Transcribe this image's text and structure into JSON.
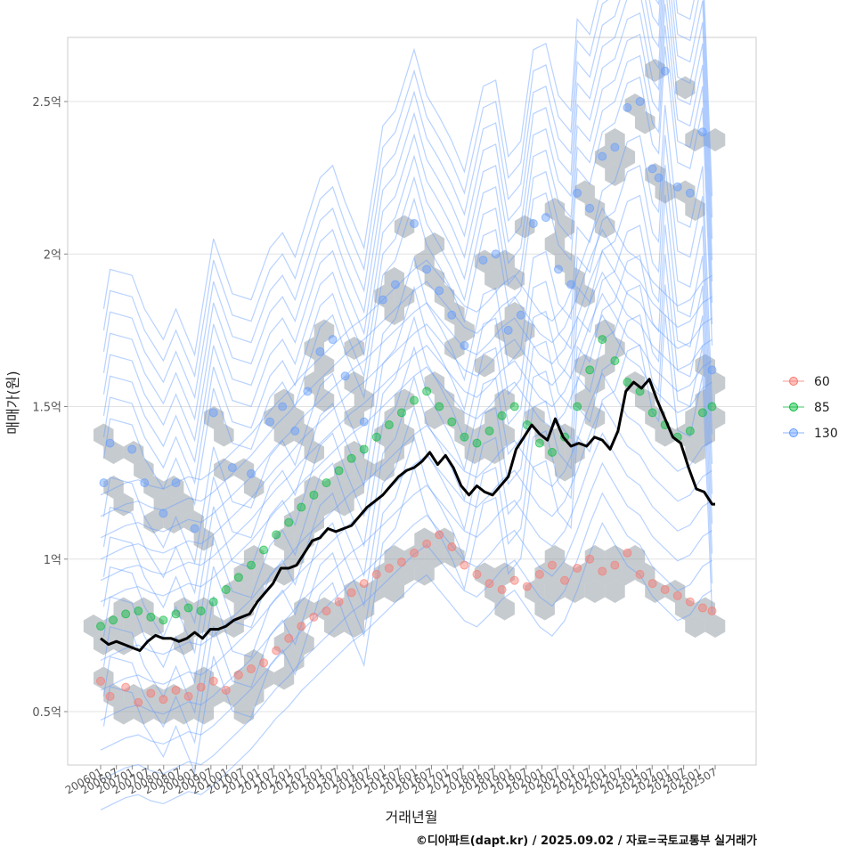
{
  "chart_data": {
    "type": "scatter",
    "xlabel": "거래년월",
    "ylabel": "매매가(원)",
    "ylim": [
      0.33,
      2.7
    ],
    "y_ticks": [
      {
        "value": 0.5,
        "label": "0.5억"
      },
      {
        "value": 1.0,
        "label": "1억"
      },
      {
        "value": 1.5,
        "label": "1.5억"
      },
      {
        "value": 2.0,
        "label": "2억"
      },
      {
        "value": 2.5,
        "label": "2.5억"
      }
    ],
    "x_tick_labels": [
      "200601",
      "200607",
      "200701",
      "200707",
      "200801",
      "200807",
      "200901",
      "200907",
      "201001",
      "201007",
      "201101",
      "201107",
      "201201",
      "201207",
      "201301",
      "201307",
      "201401",
      "201407",
      "201501",
      "201507",
      "201601",
      "201607",
      "201701",
      "201707",
      "201801",
      "201807",
      "201901",
      "201907",
      "202001",
      "202007",
      "202101",
      "202107",
      "202201",
      "202207",
      "202301",
      "202307",
      "202401",
      "202407",
      "202501",
      "202507"
    ],
    "legend": {
      "title": "",
      "position": "right",
      "entries": [
        {
          "label": "60",
          "color": "#F8766D"
        },
        {
          "label": "85",
          "color": "#00BA38"
        },
        {
          "label": "130",
          "color": "#619CFF"
        }
      ]
    },
    "series": [
      {
        "name": "60",
        "color": "#F8766D",
        "points": [
          [
            2006.0,
            0.6
          ],
          [
            2006.3,
            0.55
          ],
          [
            2006.8,
            0.58
          ],
          [
            2007.2,
            0.53
          ],
          [
            2007.6,
            0.56
          ],
          [
            2008.0,
            0.54
          ],
          [
            2008.4,
            0.57
          ],
          [
            2008.8,
            0.55
          ],
          [
            2009.2,
            0.58
          ],
          [
            2009.6,
            0.6
          ],
          [
            2010.0,
            0.57
          ],
          [
            2010.4,
            0.62
          ],
          [
            2010.8,
            0.64
          ],
          [
            2011.2,
            0.66
          ],
          [
            2011.6,
            0.7
          ],
          [
            2012.0,
            0.74
          ],
          [
            2012.4,
            0.78
          ],
          [
            2012.8,
            0.81
          ],
          [
            2013.2,
            0.83
          ],
          [
            2013.6,
            0.86
          ],
          [
            2014.0,
            0.89
          ],
          [
            2014.4,
            0.92
          ],
          [
            2014.8,
            0.95
          ],
          [
            2015.2,
            0.97
          ],
          [
            2015.6,
            0.99
          ],
          [
            2016.0,
            1.02
          ],
          [
            2016.4,
            1.05
          ],
          [
            2016.8,
            1.08
          ],
          [
            2017.2,
            1.04
          ],
          [
            2017.6,
            0.98
          ],
          [
            2018.0,
            0.95
          ],
          [
            2018.4,
            0.92
          ],
          [
            2018.8,
            0.9
          ],
          [
            2019.2,
            0.93
          ],
          [
            2019.6,
            0.91
          ],
          [
            2020.0,
            0.95
          ],
          [
            2020.4,
            0.98
          ],
          [
            2020.8,
            0.93
          ],
          [
            2021.2,
            0.97
          ],
          [
            2021.6,
            1.0
          ],
          [
            2022.0,
            0.96
          ],
          [
            2022.4,
            0.98
          ],
          [
            2022.8,
            1.02
          ],
          [
            2023.2,
            0.95
          ],
          [
            2023.6,
            0.92
          ],
          [
            2024.0,
            0.9
          ],
          [
            2024.4,
            0.88
          ],
          [
            2024.8,
            0.86
          ],
          [
            2025.2,
            0.84
          ],
          [
            2025.5,
            0.83
          ]
        ]
      },
      {
        "name": "85",
        "color": "#00BA38",
        "points": [
          [
            2006.0,
            0.78
          ],
          [
            2006.4,
            0.8
          ],
          [
            2006.8,
            0.82
          ],
          [
            2007.2,
            0.83
          ],
          [
            2007.6,
            0.81
          ],
          [
            2008.0,
            0.8
          ],
          [
            2008.4,
            0.82
          ],
          [
            2008.8,
            0.84
          ],
          [
            2009.2,
            0.83
          ],
          [
            2009.6,
            0.86
          ],
          [
            2010.0,
            0.9
          ],
          [
            2010.4,
            0.94
          ],
          [
            2010.8,
            0.98
          ],
          [
            2011.2,
            1.03
          ],
          [
            2011.6,
            1.08
          ],
          [
            2012.0,
            1.12
          ],
          [
            2012.4,
            1.17
          ],
          [
            2012.8,
            1.21
          ],
          [
            2013.2,
            1.25
          ],
          [
            2013.6,
            1.29
          ],
          [
            2014.0,
            1.33
          ],
          [
            2014.4,
            1.36
          ],
          [
            2014.8,
            1.4
          ],
          [
            2015.2,
            1.44
          ],
          [
            2015.6,
            1.48
          ],
          [
            2016.0,
            1.52
          ],
          [
            2016.4,
            1.55
          ],
          [
            2016.8,
            1.5
          ],
          [
            2017.2,
            1.45
          ],
          [
            2017.6,
            1.4
          ],
          [
            2018.0,
            1.38
          ],
          [
            2018.4,
            1.42
          ],
          [
            2018.8,
            1.47
          ],
          [
            2019.2,
            1.5
          ],
          [
            2019.6,
            1.44
          ],
          [
            2020.0,
            1.38
          ],
          [
            2020.4,
            1.35
          ],
          [
            2020.8,
            1.4
          ],
          [
            2021.2,
            1.5
          ],
          [
            2021.6,
            1.62
          ],
          [
            2022.0,
            1.72
          ],
          [
            2022.4,
            1.65
          ],
          [
            2022.8,
            1.58
          ],
          [
            2023.2,
            1.55
          ],
          [
            2023.6,
            1.48
          ],
          [
            2024.0,
            1.44
          ],
          [
            2024.4,
            1.4
          ],
          [
            2024.8,
            1.42
          ],
          [
            2025.2,
            1.48
          ],
          [
            2025.5,
            1.5
          ]
        ]
      },
      {
        "name": "130",
        "color": "#619CFF",
        "points": [
          [
            2006.1,
            1.25
          ],
          [
            2006.3,
            1.38
          ],
          [
            2007.0,
            1.36
          ],
          [
            2007.4,
            1.25
          ],
          [
            2008.0,
            1.15
          ],
          [
            2008.4,
            1.25
          ],
          [
            2009.0,
            1.1
          ],
          [
            2009.6,
            1.48
          ],
          [
            2010.2,
            1.3
          ],
          [
            2010.8,
            1.28
          ],
          [
            2011.4,
            1.45
          ],
          [
            2011.8,
            1.5
          ],
          [
            2012.2,
            1.42
          ],
          [
            2012.6,
            1.55
          ],
          [
            2013.0,
            1.68
          ],
          [
            2013.4,
            1.72
          ],
          [
            2013.8,
            1.6
          ],
          [
            2014.4,
            1.45
          ],
          [
            2015.0,
            1.85
          ],
          [
            2015.4,
            1.9
          ],
          [
            2016.0,
            2.1
          ],
          [
            2016.4,
            1.95
          ],
          [
            2016.8,
            1.88
          ],
          [
            2017.2,
            1.8
          ],
          [
            2017.6,
            1.7
          ],
          [
            2018.2,
            1.98
          ],
          [
            2018.6,
            2.0
          ],
          [
            2019.0,
            1.75
          ],
          [
            2019.4,
            1.8
          ],
          [
            2019.8,
            2.1
          ],
          [
            2020.2,
            2.12
          ],
          [
            2020.6,
            1.95
          ],
          [
            2021.0,
            1.9
          ],
          [
            2021.2,
            2.2
          ],
          [
            2021.6,
            2.15
          ],
          [
            2022.0,
            2.32
          ],
          [
            2022.4,
            2.35
          ],
          [
            2022.8,
            2.48
          ],
          [
            2023.2,
            2.5
          ],
          [
            2023.6,
            2.28
          ],
          [
            2023.8,
            2.25
          ],
          [
            2024.0,
            2.6
          ],
          [
            2024.4,
            2.22
          ],
          [
            2024.8,
            2.2
          ],
          [
            2025.2,
            2.4
          ],
          [
            2025.5,
            1.62
          ]
        ]
      }
    ],
    "trend_line": {
      "name": "moving average",
      "color": "#000000",
      "x": [
        2006.0,
        2006.25,
        2006.5,
        2006.75,
        2007.0,
        2007.25,
        2007.5,
        2007.75,
        2008.0,
        2008.25,
        2008.5,
        2008.75,
        2009.0,
        2009.25,
        2009.5,
        2009.75,
        2010.0,
        2010.25,
        2010.5,
        2010.75,
        2011.0,
        2011.25,
        2011.5,
        2011.75,
        2012.0,
        2012.25,
        2012.5,
        2012.75,
        2013.0,
        2013.25,
        2013.5,
        2013.75,
        2014.0,
        2014.25,
        2014.5,
        2014.75,
        2015.0,
        2015.25,
        2015.5,
        2015.75,
        2016.0,
        2016.25,
        2016.5,
        2016.75,
        2017.0,
        2017.25,
        2017.5,
        2017.75,
        2018.0,
        2018.25,
        2018.5,
        2018.75,
        2019.0,
        2019.25,
        2019.5,
        2019.75,
        2020.0,
        2020.25,
        2020.5,
        2020.75,
        2021.0,
        2021.25,
        2021.5,
        2021.75,
        2022.0,
        2022.25,
        2022.5,
        2022.75,
        2023.0,
        2023.25,
        2023.5,
        2023.75,
        2024.0,
        2024.25,
        2024.5,
        2024.75,
        2025.0,
        2025.25,
        2025.5,
        2025.6
      ],
      "y": [
        0.74,
        0.72,
        0.73,
        0.72,
        0.71,
        0.7,
        0.73,
        0.75,
        0.74,
        0.74,
        0.73,
        0.74,
        0.76,
        0.74,
        0.77,
        0.77,
        0.78,
        0.8,
        0.81,
        0.82,
        0.86,
        0.89,
        0.92,
        0.97,
        0.97,
        0.98,
        1.02,
        1.06,
        1.07,
        1.1,
        1.09,
        1.1,
        1.11,
        1.14,
        1.17,
        1.19,
        1.21,
        1.24,
        1.27,
        1.29,
        1.3,
        1.32,
        1.35,
        1.31,
        1.34,
        1.3,
        1.24,
        1.21,
        1.24,
        1.22,
        1.21,
        1.24,
        1.27,
        1.36,
        1.4,
        1.44,
        1.41,
        1.39,
        1.46,
        1.4,
        1.37,
        1.38,
        1.37,
        1.4,
        1.39,
        1.36,
        1.42,
        1.55,
        1.58,
        1.56,
        1.59,
        1.52,
        1.46,
        1.4,
        1.38,
        1.3,
        1.23,
        1.22,
        1.18,
        1.18
      ]
    },
    "contours": [
      {
        "name": "130",
        "color": "#619CFF",
        "levels": 8
      },
      {
        "name": "85",
        "color": "#619CFF",
        "levels": 6
      }
    ],
    "hexbin": {
      "color": "#8E98A0",
      "opacity": 0.5
    }
  },
  "caption": "©디아파트(dapt.kr) / 2025.09.02 / 자료=국토교통부 실거래가"
}
